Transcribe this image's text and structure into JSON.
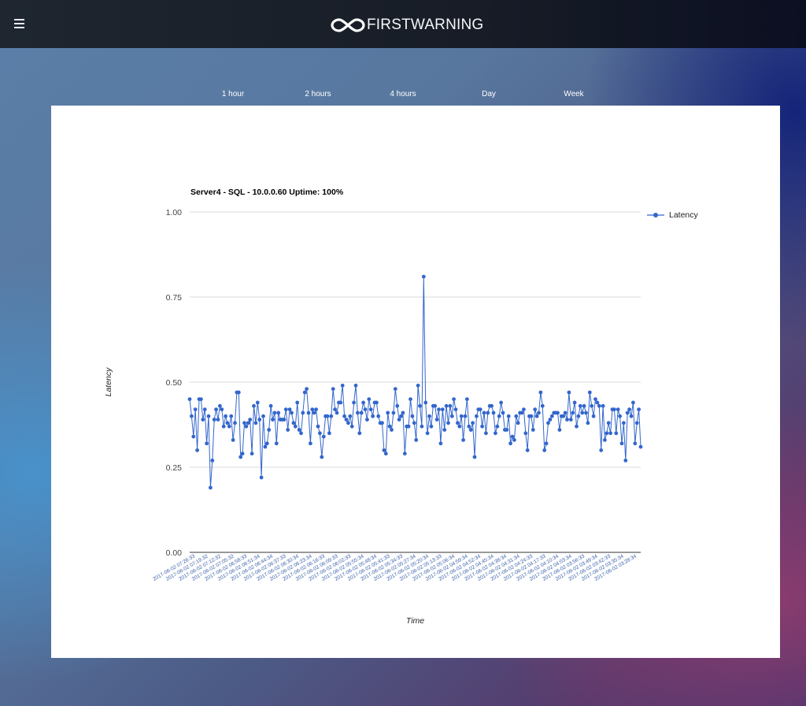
{
  "app": {
    "brand": "FIRSTWARNING",
    "menu_icon": "hamburger-icon",
    "logo_icon": "infinity-icon"
  },
  "range_tabs": [
    "1 hour",
    "2 hours",
    "4 hours",
    "Day",
    "Week"
  ],
  "colors": {
    "series": "#3366cc",
    "topbar": "#1c222c",
    "grid": "#cccccc"
  },
  "chart_data": {
    "type": "line",
    "title": "Server4 - SQL - 10.0.0.60 Uptime: 100%",
    "xlabel": "Time",
    "ylabel": "Latency",
    "ylim": [
      0,
      1
    ],
    "yticks": [
      "0.00",
      "0.25",
      "0.50",
      "0.75",
      "1.00"
    ],
    "grid": true,
    "legend_position": "right",
    "x_tick_labels": [
      "2017-06-02 07:26:33",
      "2017-06-02 07:19:32",
      "2017-06-02 07:12:32",
      "2017-06-02 07:05:32",
      "2017-06-02 06:58:33",
      "2017-06-02 06:51:34",
      "2017-06-02 06:44:34",
      "2017-06-02 06:37:33",
      "2017-06-02 06:30:34",
      "2017-06-02 06:23:34",
      "2017-06-02 06:16:33",
      "2017-06-02 06:09:33",
      "2017-06-02 06:02:33",
      "2017-06-02 05:55:34",
      "2017-06-02 05:48:34",
      "2017-06-02 05:41:33",
      "2017-06-02 05:34:33",
      "2017-06-02 05:27:34",
      "2017-06-02 05:20:34",
      "2017-06-02 05:13:33",
      "2017-06-02 05:06:34",
      "2017-06-02 04:59:34",
      "2017-06-02 04:52:34",
      "2017-06-02 04:45:34",
      "2017-06-02 04:38:34",
      "2017-06-02 04:31:34",
      "2017-06-02 04:24:33",
      "2017-06-02 04:17:33",
      "2017-06-02 04:10:34",
      "2017-06-02 04:03:34",
      "2017-06-02 03:56:33",
      "2017-06-02 03:49:34",
      "2017-06-02 03:42:33",
      "2017-06-02 03:35:34",
      "2017-06-02 03:28:34"
    ],
    "series": [
      {
        "name": "Latency",
        "values": [
          0.45,
          0.4,
          0.34,
          0.42,
          0.3,
          0.45,
          0.45,
          0.39,
          0.42,
          0.32,
          0.4,
          0.19,
          0.27,
          0.39,
          0.42,
          0.39,
          0.43,
          0.42,
          0.37,
          0.4,
          0.38,
          0.37,
          0.4,
          0.33,
          0.38,
          0.47,
          0.47,
          0.28,
          0.29,
          0.38,
          0.37,
          0.38,
          0.39,
          0.29,
          0.43,
          0.38,
          0.44,
          0.39,
          0.22,
          0.4,
          0.31,
          0.32,
          0.36,
          0.43,
          0.39,
          0.41,
          0.32,
          0.41,
          0.39,
          0.39,
          0.39,
          0.42,
          0.36,
          0.42,
          0.41,
          0.38,
          0.37,
          0.44,
          0.36,
          0.35,
          0.41,
          0.47,
          0.48,
          0.41,
          0.32,
          0.42,
          0.41,
          0.42,
          0.37,
          0.35,
          0.28,
          0.34,
          0.4,
          0.4,
          0.35,
          0.4,
          0.48,
          0.42,
          0.41,
          0.44,
          0.44,
          0.49,
          0.4,
          0.39,
          0.38,
          0.4,
          0.37,
          0.44,
          0.49,
          0.41,
          0.35,
          0.41,
          0.44,
          0.42,
          0.39,
          0.45,
          0.42,
          0.4,
          0.44,
          0.44,
          0.4,
          0.38,
          0.38,
          0.3,
          0.29,
          0.41,
          0.37,
          0.36,
          0.41,
          0.48,
          0.43,
          0.39,
          0.4,
          0.41,
          0.29,
          0.37,
          0.37,
          0.45,
          0.4,
          0.38,
          0.33,
          0.49,
          0.43,
          0.37,
          0.81,
          0.44,
          0.35,
          0.4,
          0.37,
          0.43,
          0.43,
          0.39,
          0.42,
          0.32,
          0.42,
          0.36,
          0.43,
          0.38,
          0.43,
          0.4,
          0.45,
          0.42,
          0.38,
          0.37,
          0.4,
          0.33,
          0.4,
          0.45,
          0.37,
          0.36,
          0.38,
          0.28,
          0.4,
          0.42,
          0.42,
          0.37,
          0.41,
          0.35,
          0.41,
          0.43,
          0.43,
          0.41,
          0.35,
          0.37,
          0.4,
          0.44,
          0.41,
          0.36,
          0.36,
          0.4,
          0.32,
          0.34,
          0.33,
          0.4,
          0.38,
          0.41,
          0.41,
          0.42,
          0.35,
          0.3,
          0.4,
          0.4,
          0.36,
          0.42,
          0.4,
          0.41,
          0.47,
          0.43,
          0.3,
          0.32,
          0.38,
          0.39,
          0.4,
          0.41,
          0.41,
          0.41,
          0.36,
          0.4,
          0.4,
          0.41,
          0.39,
          0.47,
          0.39,
          0.41,
          0.44,
          0.37,
          0.4,
          0.43,
          0.41,
          0.43,
          0.41,
          0.38,
          0.47,
          0.43,
          0.4,
          0.45,
          0.44,
          0.43,
          0.3,
          0.43,
          0.33,
          0.35,
          0.38,
          0.35,
          0.42,
          0.42,
          0.35,
          0.42,
          0.4,
          0.32,
          0.38,
          0.27,
          0.41,
          0.42,
          0.4,
          0.44,
          0.32,
          0.38,
          0.42,
          0.31
        ]
      }
    ]
  }
}
